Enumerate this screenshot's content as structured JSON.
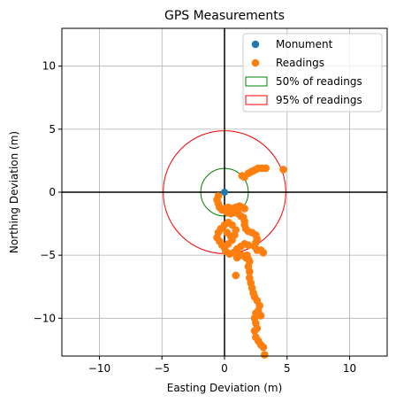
{
  "chart_data": {
    "type": "scatter",
    "title": "GPS Measurements",
    "xlabel": "Easting Deviation (m)",
    "ylabel": "Northing Deviation (m)",
    "xlim": [
      -13,
      13
    ],
    "ylim": [
      -13,
      13
    ],
    "xticks": [
      -10,
      -5,
      0,
      5,
      10
    ],
    "yticks": [
      -10,
      -5,
      0,
      5,
      10
    ],
    "grid": true,
    "legend_position": "top-right",
    "colors": {
      "monument": "#1f77b4",
      "readings": "#ff7f0e",
      "circle50": "#008000",
      "circle95": "#ff0000",
      "axes_cross": "#000000",
      "grid": "#b0b0b0"
    },
    "legend": [
      {
        "label": "Monument",
        "kind": "point",
        "key": "monument"
      },
      {
        "label": "Readings",
        "kind": "point",
        "key": "readings"
      },
      {
        "label": "50% of readings",
        "kind": "rect",
        "key": "circle50"
      },
      {
        "label": "95% of readings",
        "kind": "rect",
        "key": "circle95"
      }
    ],
    "monument": {
      "x": 0,
      "y": 0
    },
    "circles": [
      {
        "name": "50% of readings",
        "cx": 0,
        "cy": 0,
        "r": 1.9,
        "key": "circle50"
      },
      {
        "name": "95% of readings",
        "cx": 0,
        "cy": 0,
        "r": 4.9,
        "key": "circle95"
      }
    ],
    "readings": [
      [
        1.4,
        1.3
      ],
      [
        1.6,
        1.2
      ],
      [
        1.9,
        1.5
      ],
      [
        2.1,
        1.6
      ],
      [
        2.3,
        1.7
      ],
      [
        2.5,
        1.8
      ],
      [
        2.7,
        1.9
      ],
      [
        3.0,
        1.9
      ],
      [
        3.3,
        1.9
      ],
      [
        4.7,
        1.8
      ],
      [
        -0.5,
        -0.3
      ],
      [
        -0.6,
        -0.6
      ],
      [
        -0.5,
        -0.9
      ],
      [
        -0.4,
        -1.2
      ],
      [
        -0.2,
        -1.4
      ],
      [
        0.0,
        -1.3
      ],
      [
        0.3,
        -1.2
      ],
      [
        0.6,
        -1.3
      ],
      [
        0.9,
        -1.2
      ],
      [
        1.2,
        -1.1
      ],
      [
        1.4,
        -1.2
      ],
      [
        1.6,
        -1.3
      ],
      [
        0.2,
        -1.6
      ],
      [
        0.5,
        -1.7
      ],
      [
        0.8,
        -1.6
      ],
      [
        1.1,
        -1.7
      ],
      [
        1.3,
        -1.9
      ],
      [
        1.5,
        -2.0
      ],
      [
        1.6,
        -2.3
      ],
      [
        1.6,
        -2.6
      ],
      [
        1.7,
        -2.9
      ],
      [
        1.9,
        -3.1
      ],
      [
        2.2,
        -3.2
      ],
      [
        2.5,
        -3.4
      ],
      [
        2.6,
        -3.7
      ],
      [
        2.5,
        -4.0
      ],
      [
        2.4,
        -4.3
      ],
      [
        2.6,
        -4.6
      ],
      [
        2.9,
        -4.6
      ],
      [
        3.1,
        -4.8
      ],
      [
        -0.3,
        -2.9
      ],
      [
        -0.5,
        -3.2
      ],
      [
        -0.6,
        -3.6
      ],
      [
        -0.4,
        -3.9
      ],
      [
        -0.2,
        -4.2
      ],
      [
        0.0,
        -4.4
      ],
      [
        0.3,
        -4.1
      ],
      [
        0.6,
        -3.8
      ],
      [
        0.8,
        -3.4
      ],
      [
        0.9,
        -3.0
      ],
      [
        0.6,
        -2.6
      ],
      [
        0.3,
        -2.4
      ],
      [
        0.0,
        -2.6
      ],
      [
        0.2,
        -3.2
      ],
      [
        0.5,
        -3.5
      ],
      [
        0.1,
        -4.7
      ],
      [
        0.4,
        -4.9
      ],
      [
        0.7,
        -4.8
      ],
      [
        1.0,
        -4.5
      ],
      [
        1.3,
        -4.3
      ],
      [
        1.6,
        -4.1
      ],
      [
        1.9,
        -4.2
      ],
      [
        1.1,
        -4.9
      ],
      [
        1.4,
        -5.0
      ],
      [
        1.7,
        -5.2
      ],
      [
        2.0,
        -5.5
      ],
      [
        1.9,
        -5.3
      ],
      [
        1.8,
        -5.0
      ],
      [
        1.0,
        -5.2
      ],
      [
        0.9,
        -6.6
      ],
      [
        1.9,
        -5.9
      ],
      [
        2.0,
        -6.3
      ],
      [
        2.0,
        -6.8
      ],
      [
        2.1,
        -7.2
      ],
      [
        2.2,
        -7.6
      ],
      [
        2.3,
        -8.0
      ],
      [
        2.4,
        -8.3
      ],
      [
        2.6,
        -8.6
      ],
      [
        2.8,
        -9.0
      ],
      [
        2.7,
        -9.4
      ],
      [
        2.5,
        -9.6
      ],
      [
        2.4,
        -10.0
      ],
      [
        2.5,
        -10.4
      ],
      [
        2.6,
        -10.8
      ],
      [
        2.4,
        -11.0
      ],
      [
        2.5,
        -11.5
      ],
      [
        2.7,
        -11.8
      ],
      [
        2.9,
        -12.1
      ],
      [
        3.1,
        -12.3
      ],
      [
        3.2,
        -12.9
      ],
      [
        2.9,
        -9.8
      ]
    ]
  }
}
